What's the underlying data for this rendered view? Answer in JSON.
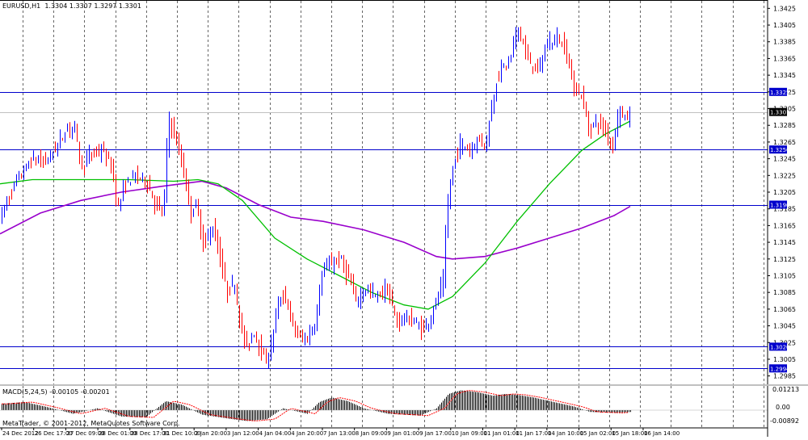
{
  "header": {
    "symbol": "EURUSD,H1",
    "ohlc": "1.3304 1.3307 1.3297 1.3301"
  },
  "indicator": {
    "label": "MACD(5,24,5) -0.00105 -0.00201",
    "scale_top": "0.01213",
    "scale_zero": "0.00",
    "scale_bottom": "-0.00892"
  },
  "footer": {
    "copyright": "MetaTrader, © 2001-2012, MetaQuotes Software Corp."
  },
  "colors": {
    "bull": "#0000ff",
    "bear": "#ff0000",
    "ma_fast": "#00c000",
    "ma_slow": "#9900cc",
    "hline": "#0000cc",
    "macd_hist": "#000000",
    "macd_signal": "#ff0000"
  },
  "chart_data": {
    "type": "candlestick",
    "price_ticks": [
      "1.3425",
      "1.3405",
      "1.3385",
      "1.3365",
      "1.3345",
      "1.3325",
      "1.3305",
      "1.3285",
      "1.3265",
      "1.3245",
      "1.3225",
      "1.3205",
      "1.3185",
      "1.3165",
      "1.3145",
      "1.3125",
      "1.3105",
      "1.3085",
      "1.3065",
      "1.3045",
      "1.3025",
      "1.3005",
      "1.2985"
    ],
    "ylim": [
      1.2975,
      1.3435
    ],
    "current_price": "1.3301",
    "horizontal_levels": [
      "1.3325",
      "1.3256",
      "1.3190",
      "1.3020",
      "1.2994"
    ],
    "time_labels": [
      "24 Dec 2012",
      "26 Dec 17:00",
      "27 Dec 09:00",
      "28 Dec 01:00",
      "28 Dec 17:00",
      "31 Dec 10:00",
      "2 Jan 20:00",
      "3 Jan 12:00",
      "4 Jan 04:00",
      "4 Jan 20:00",
      "7 Jan 13:00",
      "8 Jan 09:00",
      "9 Jan 01:00",
      "9 Jan 17:00",
      "10 Jan 09:00",
      "11 Jan 01:00",
      "11 Jan 17:00",
      "14 Jan 10:00",
      "15 Jan 02:00",
      "15 Jan 18:00",
      "16 Jan 14:00"
    ],
    "price_path": [
      [
        0,
        1.3175
      ],
      [
        18,
        1.3215
      ],
      [
        40,
        1.3245
      ],
      [
        55,
        1.324
      ],
      [
        70,
        1.326
      ],
      [
        82,
        1.328
      ],
      [
        92,
        1.3285
      ],
      [
        100,
        1.3235
      ],
      [
        112,
        1.325
      ],
      [
        125,
        1.3255
      ],
      [
        138,
        1.3235
      ],
      [
        145,
        1.3185
      ],
      [
        155,
        1.3215
      ],
      [
        165,
        1.3225
      ],
      [
        180,
        1.322
      ],
      [
        192,
        1.319
      ],
      [
        202,
        1.318
      ],
      [
        208,
        1.3295
      ],
      [
        218,
        1.3265
      ],
      [
        228,
        1.3225
      ],
      [
        235,
        1.318
      ],
      [
        242,
        1.319
      ],
      [
        252,
        1.314
      ],
      [
        262,
        1.3165
      ],
      [
        270,
        1.3135
      ],
      [
        280,
        1.3085
      ],
      [
        290,
        1.3095
      ],
      [
        298,
        1.304
      ],
      [
        305,
        1.302
      ],
      [
        315,
        1.304
      ],
      [
        325,
        1.3005
      ],
      [
        333,
        1.301
      ],
      [
        342,
        1.3065
      ],
      [
        352,
        1.3085
      ],
      [
        360,
        1.305
      ],
      [
        370,
        1.303
      ],
      [
        380,
        1.303
      ],
      [
        390,
        1.305
      ],
      [
        398,
        1.311
      ],
      [
        410,
        1.312
      ],
      [
        420,
        1.3125
      ],
      [
        430,
        1.3105
      ],
      [
        440,
        1.3075
      ],
      [
        452,
        1.309
      ],
      [
        465,
        1.308
      ],
      [
        478,
        1.309
      ],
      [
        490,
        1.305
      ],
      [
        500,
        1.3055
      ],
      [
        512,
        1.305
      ],
      [
        522,
        1.304
      ],
      [
        532,
        1.3055
      ],
      [
        540,
        1.3075
      ],
      [
        548,
        1.31
      ],
      [
        553,
        1.3185
      ],
      [
        560,
        1.3235
      ],
      [
        570,
        1.3265
      ],
      [
        580,
        1.3255
      ],
      [
        592,
        1.327
      ],
      [
        600,
        1.326
      ],
      [
        608,
        1.3305
      ],
      [
        615,
        1.3345
      ],
      [
        622,
        1.3355
      ],
      [
        630,
        1.336
      ],
      [
        640,
        1.3405
      ],
      [
        652,
        1.3365
      ],
      [
        665,
        1.335
      ],
      [
        678,
        1.3385
      ],
      [
        690,
        1.339
      ],
      [
        700,
        1.3375
      ],
      [
        710,
        1.333
      ],
      [
        720,
        1.332
      ],
      [
        728,
        1.328
      ],
      [
        738,
        1.329
      ],
      [
        748,
        1.328
      ],
      [
        758,
        1.326
      ],
      [
        766,
        1.331
      ],
      [
        772,
        1.329
      ],
      [
        780,
        1.3301
      ]
    ],
    "ma_fast_path": [
      [
        0,
        1.3215
      ],
      [
        40,
        1.322
      ],
      [
        100,
        1.322
      ],
      [
        160,
        1.322
      ],
      [
        215,
        1.3218
      ],
      [
        245,
        1.322
      ],
      [
        270,
        1.3215
      ],
      [
        300,
        1.3195
      ],
      [
        340,
        1.315
      ],
      [
        380,
        1.3125
      ],
      [
        420,
        1.3105
      ],
      [
        460,
        1.3085
      ],
      [
        500,
        1.307
      ],
      [
        530,
        1.3065
      ],
      [
        560,
        1.308
      ],
      [
        600,
        1.312
      ],
      [
        640,
        1.317
      ],
      [
        680,
        1.3215
      ],
      [
        720,
        1.3255
      ],
      [
        750,
        1.3275
      ],
      [
        780,
        1.329
      ]
    ],
    "ma_slow_path": [
      [
        0,
        1.3155
      ],
      [
        50,
        1.318
      ],
      [
        100,
        1.3195
      ],
      [
        150,
        1.3205
      ],
      [
        200,
        1.3212
      ],
      [
        250,
        1.3218
      ],
      [
        280,
        1.321
      ],
      [
        320,
        1.319
      ],
      [
        360,
        1.3175
      ],
      [
        400,
        1.317
      ],
      [
        450,
        1.316
      ],
      [
        500,
        1.3145
      ],
      [
        540,
        1.3128
      ],
      [
        560,
        1.3125
      ],
      [
        600,
        1.3128
      ],
      [
        640,
        1.3138
      ],
      [
        680,
        1.315
      ],
      [
        720,
        1.3162
      ],
      [
        760,
        1.3177
      ],
      [
        780,
        1.3188
      ]
    ],
    "macd_path": [
      [
        0,
        0.0035
      ],
      [
        30,
        0.0045
      ],
      [
        60,
        0.0015
      ],
      [
        90,
        -0.002
      ],
      [
        120,
        0.001
      ],
      [
        150,
        -0.0035
      ],
      [
        180,
        -0.004
      ],
      [
        205,
        0.005
      ],
      [
        225,
        0.003
      ],
      [
        250,
        -0.0025
      ],
      [
        280,
        -0.0045
      ],
      [
        305,
        -0.006
      ],
      [
        330,
        -0.005
      ],
      [
        350,
        0.001
      ],
      [
        380,
        -0.002
      ],
      [
        395,
        0.0045
      ],
      [
        410,
        0.007
      ],
      [
        430,
        0.005
      ],
      [
        450,
        0.001
      ],
      [
        480,
        -0.002
      ],
      [
        520,
        -0.003
      ],
      [
        540,
        0.001
      ],
      [
        555,
        0.009
      ],
      [
        570,
        0.011
      ],
      [
        590,
        0.01
      ],
      [
        610,
        0.008
      ],
      [
        625,
        0.009
      ],
      [
        640,
        0.0085
      ],
      [
        660,
        0.007
      ],
      [
        690,
        0.004
      ],
      [
        710,
        0.002
      ],
      [
        730,
        -0.001
      ],
      [
        760,
        -0.0015
      ],
      [
        780,
        -0.001
      ]
    ]
  }
}
